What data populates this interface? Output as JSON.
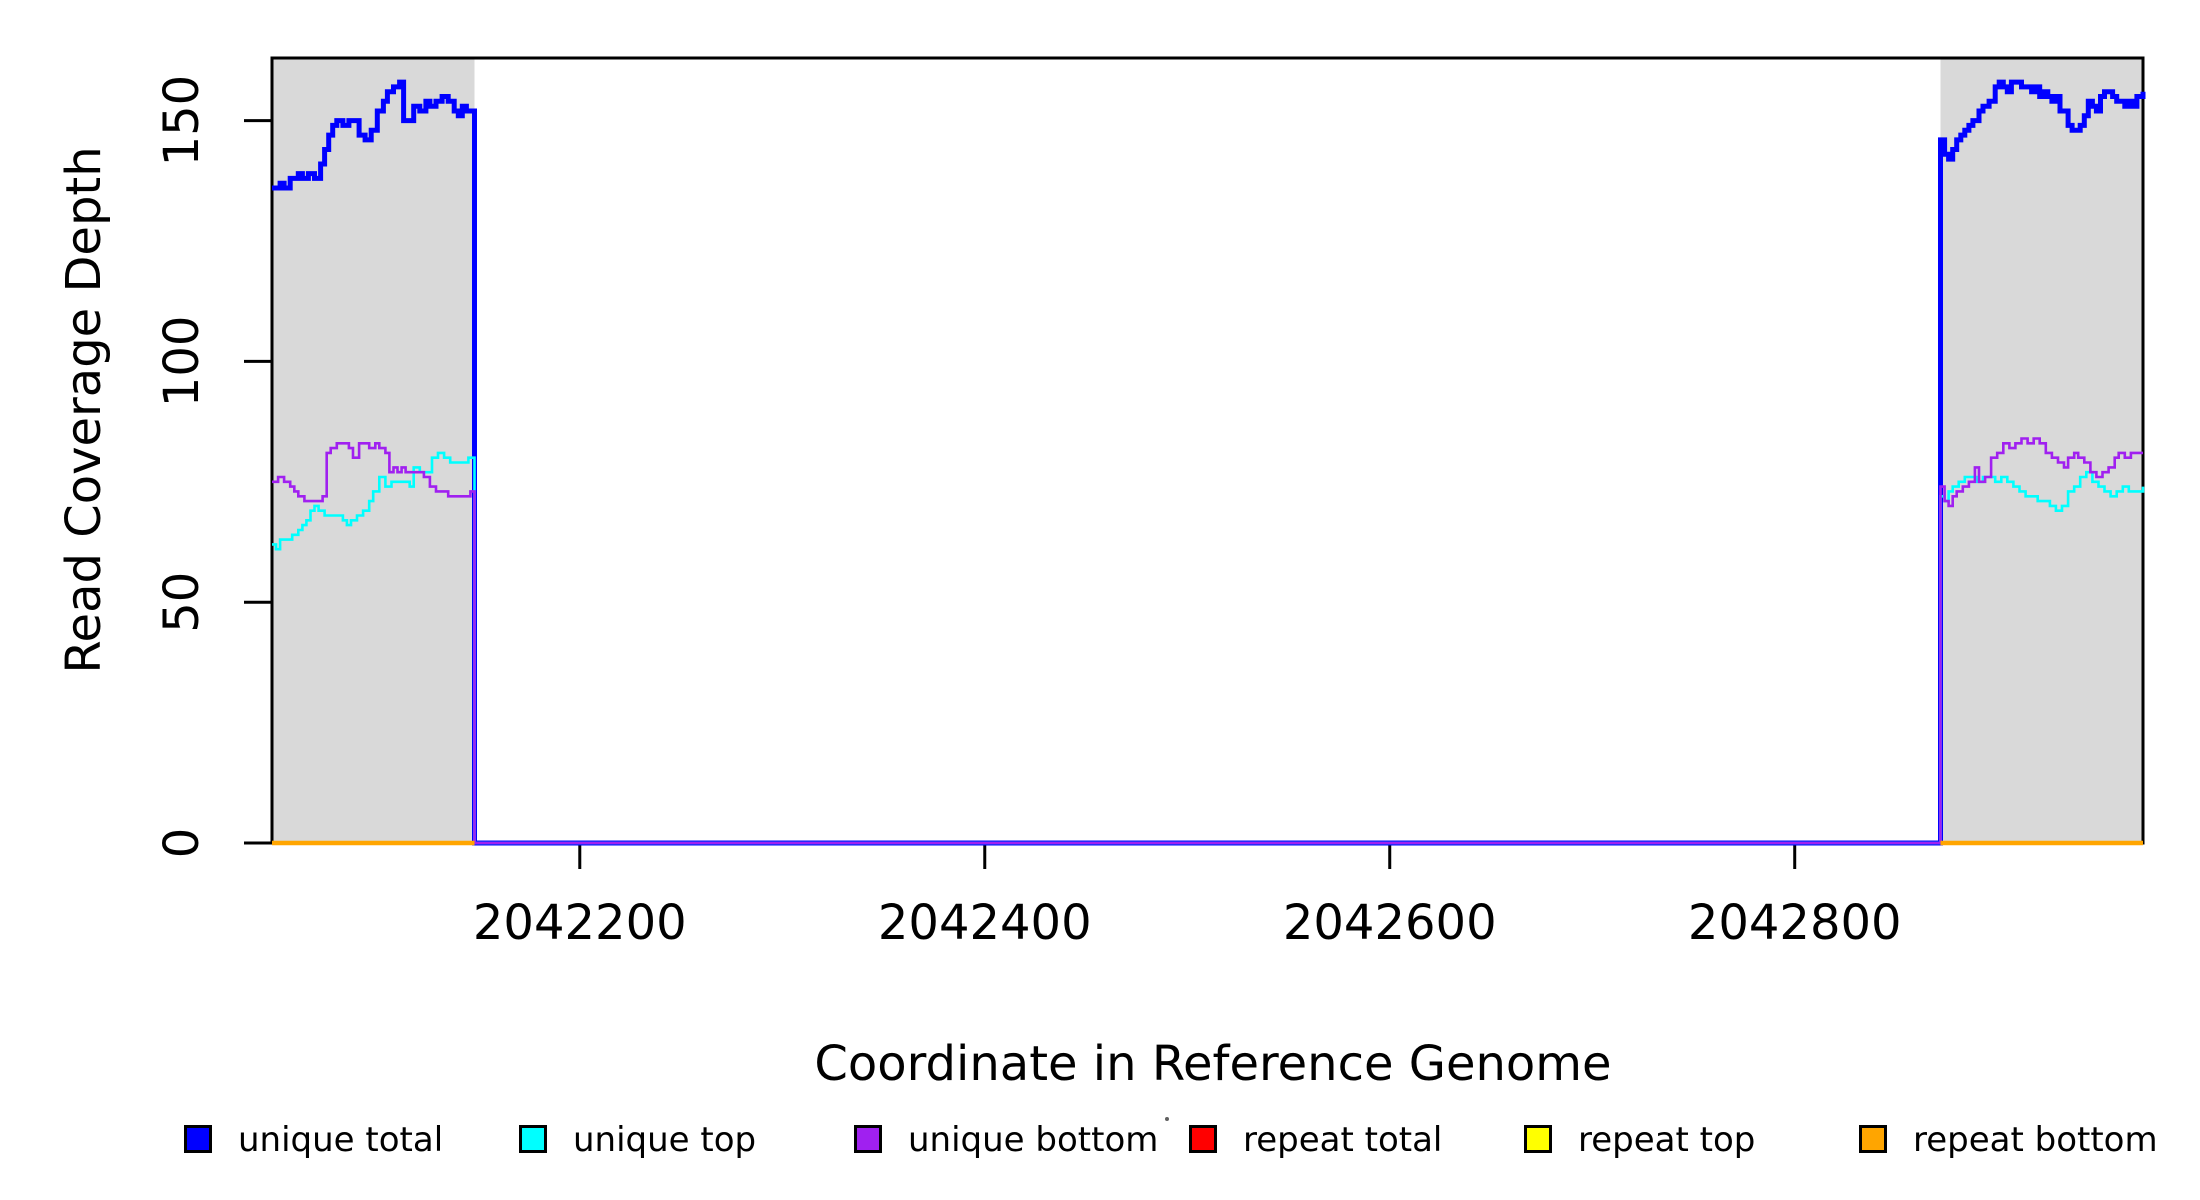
{
  "figure": {
    "background": "#ffffff",
    "plot_bg": "#ffffff",
    "border_color": "#000000"
  },
  "chart_data": {
    "type": "line",
    "line_style": "step-after",
    "title": "",
    "xlabel": "Coordinate in Reference Genome",
    "ylabel": "Read Coverage Depth",
    "xlim": [
      2042048,
      2042972
    ],
    "ylim": [
      0,
      163
    ],
    "x_ticks": [
      2042200,
      2042400,
      2042600,
      2042800
    ],
    "y_ticks": [
      0,
      50,
      100,
      150
    ],
    "grid": false,
    "legend_position": "bottom",
    "shaded_regions": [
      {
        "name": "left",
        "x0": 2042048,
        "x1": 2042148,
        "color": "#D9D9D9"
      },
      {
        "name": "right",
        "x0": 2042872,
        "x1": 2042972,
        "color": "#D9D9D9"
      }
    ],
    "series": [
      {
        "id": "unique-total",
        "name": "unique total",
        "color": "#0000FF",
        "width": 5,
        "segments": [
          [
            [
              2042048,
              136
            ],
            [
              2042052,
              137
            ],
            [
              2042054,
              136
            ],
            [
              2042057,
              138
            ],
            [
              2042061,
              139
            ],
            [
              2042063,
              138
            ],
            [
              2042066,
              139
            ],
            [
              2042069,
              138
            ],
            [
              2042072,
              141
            ],
            [
              2042074,
              144
            ],
            [
              2042076,
              147
            ],
            [
              2042078,
              149
            ],
            [
              2042080,
              150
            ],
            [
              2042083,
              149
            ],
            [
              2042086,
              150
            ],
            [
              2042089,
              150
            ],
            [
              2042091,
              147
            ],
            [
              2042094,
              146
            ],
            [
              2042097,
              148
            ],
            [
              2042100,
              152
            ],
            [
              2042103,
              154
            ],
            [
              2042105,
              156
            ],
            [
              2042108,
              157
            ],
            [
              2042111,
              158
            ],
            [
              2042113,
              150
            ],
            [
              2042116,
              150
            ],
            [
              2042118,
              153
            ],
            [
              2042121,
              152
            ],
            [
              2042124,
              154
            ],
            [
              2042126,
              153
            ],
            [
              2042129,
              154
            ],
            [
              2042132,
              155
            ],
            [
              2042135,
              154
            ],
            [
              2042138,
              152
            ],
            [
              2042140,
              151
            ],
            [
              2042142,
              153
            ],
            [
              2042144,
              152
            ],
            [
              2042146,
              152
            ],
            [
              2042148,
              0
            ],
            [
              2042872,
              146
            ],
            [
              2042874,
              143
            ],
            [
              2042876,
              142
            ],
            [
              2042878,
              144
            ],
            [
              2042880,
              146
            ],
            [
              2042882,
              147
            ],
            [
              2042884,
              148
            ],
            [
              2042886,
              149
            ],
            [
              2042888,
              150
            ],
            [
              2042891,
              152
            ],
            [
              2042893,
              153
            ],
            [
              2042896,
              154
            ],
            [
              2042899,
              157
            ],
            [
              2042901,
              158
            ],
            [
              2042903,
              157
            ],
            [
              2042905,
              156
            ],
            [
              2042907,
              158
            ],
            [
              2042910,
              158
            ],
            [
              2042912,
              157
            ],
            [
              2042915,
              157
            ],
            [
              2042917,
              156
            ],
            [
              2042919,
              157
            ],
            [
              2042921,
              155
            ],
            [
              2042923,
              156
            ],
            [
              2042925,
              155
            ],
            [
              2042927,
              154
            ],
            [
              2042929,
              155
            ],
            [
              2042931,
              152
            ],
            [
              2042933,
              152
            ],
            [
              2042935,
              149
            ],
            [
              2042937,
              148
            ],
            [
              2042939,
              148
            ],
            [
              2042941,
              149
            ],
            [
              2042943,
              151
            ],
            [
              2042945,
              154
            ],
            [
              2042947,
              153
            ],
            [
              2042949,
              152
            ],
            [
              2042951,
              155
            ],
            [
              2042953,
              156
            ],
            [
              2042955,
              156
            ],
            [
              2042957,
              155
            ],
            [
              2042959,
              154
            ],
            [
              2042961,
              154
            ],
            [
              2042963,
              153
            ],
            [
              2042965,
              154
            ],
            [
              2042967,
              153
            ],
            [
              2042969,
              155
            ],
            [
              2042972,
              156
            ]
          ]
        ]
      },
      {
        "id": "unique-top",
        "name": "unique top",
        "color": "#00FFFF",
        "width": 2.6,
        "segments": [
          [
            [
              2042048,
              62
            ],
            [
              2042050,
              61
            ],
            [
              2042052,
              63
            ],
            [
              2042055,
              63
            ],
            [
              2042058,
              64
            ],
            [
              2042061,
              65
            ],
            [
              2042063,
              66
            ],
            [
              2042065,
              67
            ],
            [
              2042067,
              69
            ],
            [
              2042069,
              70
            ],
            [
              2042071,
              69
            ],
            [
              2042074,
              68
            ],
            [
              2042077,
              68
            ],
            [
              2042080,
              68
            ],
            [
              2042083,
              67
            ],
            [
              2042085,
              66
            ],
            [
              2042087,
              67
            ],
            [
              2042090,
              68
            ],
            [
              2042093,
              69
            ],
            [
              2042096,
              71
            ],
            [
              2042098,
              73
            ],
            [
              2042101,
              76
            ],
            [
              2042104,
              74
            ],
            [
              2042107,
              75
            ],
            [
              2042110,
              75
            ],
            [
              2042113,
              75
            ],
            [
              2042116,
              74
            ],
            [
              2042118,
              78
            ],
            [
              2042121,
              77
            ],
            [
              2042124,
              77
            ],
            [
              2042127,
              80
            ],
            [
              2042130,
              81
            ],
            [
              2042133,
              80
            ],
            [
              2042136,
              79
            ],
            [
              2042139,
              79
            ],
            [
              2042142,
              79
            ],
            [
              2042145,
              80
            ],
            [
              2042148,
              0
            ],
            [
              2042872,
              72
            ],
            [
              2042874,
              71
            ],
            [
              2042876,
              73
            ],
            [
              2042878,
              74
            ],
            [
              2042881,
              75
            ],
            [
              2042884,
              76
            ],
            [
              2042887,
              76
            ],
            [
              2042890,
              75
            ],
            [
              2042893,
              76
            ],
            [
              2042896,
              76
            ],
            [
              2042899,
              75
            ],
            [
              2042902,
              76
            ],
            [
              2042905,
              75
            ],
            [
              2042908,
              74
            ],
            [
              2042911,
              73
            ],
            [
              2042914,
              72
            ],
            [
              2042917,
              72
            ],
            [
              2042920,
              71
            ],
            [
              2042923,
              71
            ],
            [
              2042926,
              70
            ],
            [
              2042929,
              69
            ],
            [
              2042932,
              70
            ],
            [
              2042935,
              73
            ],
            [
              2042938,
              74
            ],
            [
              2042941,
              76
            ],
            [
              2042944,
              77
            ],
            [
              2042947,
              75
            ],
            [
              2042950,
              74
            ],
            [
              2042953,
              73
            ],
            [
              2042956,
              72
            ],
            [
              2042959,
              73
            ],
            [
              2042962,
              74
            ],
            [
              2042965,
              73
            ],
            [
              2042968,
              73
            ],
            [
              2042972,
              74
            ]
          ]
        ]
      },
      {
        "id": "unique-bottom",
        "name": "unique bottom",
        "color": "#A020F0",
        "width": 2.6,
        "segments": [
          [
            [
              2042048,
              75
            ],
            [
              2042051,
              76
            ],
            [
              2042054,
              75
            ],
            [
              2042057,
              74
            ],
            [
              2042059,
              73
            ],
            [
              2042061,
              72
            ],
            [
              2042064,
              71
            ],
            [
              2042067,
              71
            ],
            [
              2042070,
              71
            ],
            [
              2042073,
              72
            ],
            [
              2042075,
              81
            ],
            [
              2042077,
              82
            ],
            [
              2042080,
              83
            ],
            [
              2042083,
              83
            ],
            [
              2042086,
              82
            ],
            [
              2042088,
              80
            ],
            [
              2042091,
              83
            ],
            [
              2042093,
              83
            ],
            [
              2042096,
              82
            ],
            [
              2042099,
              83
            ],
            [
              2042101,
              82
            ],
            [
              2042104,
              81
            ],
            [
              2042106,
              77
            ],
            [
              2042108,
              78
            ],
            [
              2042110,
              77
            ],
            [
              2042112,
              78
            ],
            [
              2042114,
              77
            ],
            [
              2042117,
              77
            ],
            [
              2042120,
              77
            ],
            [
              2042123,
              76
            ],
            [
              2042126,
              74
            ],
            [
              2042129,
              73
            ],
            [
              2042132,
              73
            ],
            [
              2042135,
              72
            ],
            [
              2042138,
              72
            ],
            [
              2042141,
              72
            ],
            [
              2042144,
              72
            ],
            [
              2042146,
              73
            ],
            [
              2042148,
              0
            ],
            [
              2042872,
              74
            ],
            [
              2042874,
              71
            ],
            [
              2042876,
              70
            ],
            [
              2042878,
              72
            ],
            [
              2042880,
              73
            ],
            [
              2042883,
              74
            ],
            [
              2042886,
              75
            ],
            [
              2042889,
              78
            ],
            [
              2042891,
              75
            ],
            [
              2042894,
              76
            ],
            [
              2042897,
              80
            ],
            [
              2042900,
              81
            ],
            [
              2042903,
              83
            ],
            [
              2042906,
              82
            ],
            [
              2042909,
              83
            ],
            [
              2042912,
              84
            ],
            [
              2042915,
              83
            ],
            [
              2042918,
              84
            ],
            [
              2042921,
              83
            ],
            [
              2042924,
              81
            ],
            [
              2042927,
              80
            ],
            [
              2042930,
              79
            ],
            [
              2042933,
              78
            ],
            [
              2042935,
              80
            ],
            [
              2042938,
              81
            ],
            [
              2042940,
              80
            ],
            [
              2042943,
              79
            ],
            [
              2042946,
              77
            ],
            [
              2042949,
              76
            ],
            [
              2042952,
              77
            ],
            [
              2042955,
              78
            ],
            [
              2042958,
              80
            ],
            [
              2042960,
              81
            ],
            [
              2042963,
              80
            ],
            [
              2042966,
              81
            ],
            [
              2042972,
              81
            ]
          ]
        ]
      },
      {
        "id": "repeat-total",
        "name": "repeat total",
        "color": "#FF0000",
        "width": 2,
        "segments": [
          [
            [
              2042048,
              0
            ],
            [
              2042148,
              0
            ]
          ],
          [
            [
              2042872,
              0
            ],
            [
              2042972,
              0
            ]
          ]
        ]
      },
      {
        "id": "repeat-top",
        "name": "repeat top",
        "color": "#FFFF00",
        "width": 2,
        "segments": [
          [
            [
              2042048,
              0
            ],
            [
              2042148,
              0
            ]
          ],
          [
            [
              2042872,
              0
            ],
            [
              2042972,
              0
            ]
          ]
        ]
      },
      {
        "id": "repeat-bottom",
        "name": "repeat bottom",
        "color": "#FFA500",
        "width": 4.5,
        "segments": [
          [
            [
              2042048,
              0
            ],
            [
              2042148,
              0
            ]
          ],
          [
            [
              2042872,
              0
            ],
            [
              2042972,
              0
            ]
          ]
        ]
      }
    ]
  },
  "legend": {
    "items": [
      {
        "label": "unique total",
        "color": "#0000FF"
      },
      {
        "label": "unique top",
        "color": "#00FFFF"
      },
      {
        "label": "unique bottom",
        "color": "#A020F0"
      },
      {
        "label": "repeat total",
        "color": "#FF0000"
      },
      {
        "label": "repeat top",
        "color": "#FFFF00"
      },
      {
        "label": "repeat bottom",
        "color": "#FFA500"
      }
    ]
  }
}
